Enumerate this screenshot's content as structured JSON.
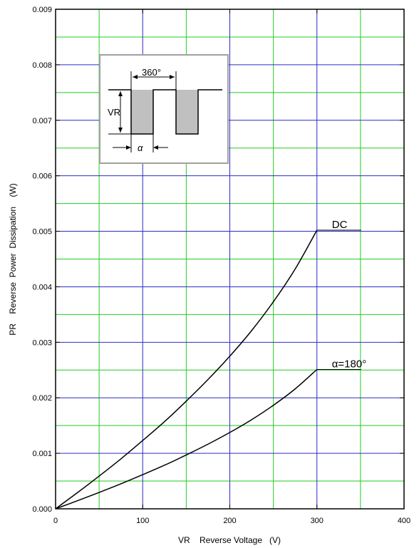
{
  "chart_data": {
    "type": "line",
    "xlabel": "VR    Reverse Voltage   (V)",
    "ylabel": "PR    Reverse  Power  Dissipation    (W)",
    "xlim": [
      0,
      400
    ],
    "ylim": [
      0,
      0.009
    ],
    "x_major_ticks": [
      0,
      100,
      200,
      300,
      400
    ],
    "x_tick_labels": [
      "0",
      "100",
      "200",
      "300",
      "400"
    ],
    "y_major_ticks": [
      0,
      0.001,
      0.002,
      0.003,
      0.004,
      0.005,
      0.006,
      0.007,
      0.008,
      0.009
    ],
    "y_tick_labels": [
      "0.000",
      "0.001",
      "0.002",
      "0.003",
      "0.004",
      "0.005",
      "0.006",
      "0.007",
      "0.008",
      "0.009"
    ],
    "grid": true,
    "grid_major_color": "#2c2cc8",
    "grid_minor_color": "#22cc22",
    "series": [
      {
        "name": "DC",
        "x": [
          0,
          25,
          50,
          75,
          100,
          125,
          150,
          175,
          200,
          225,
          250,
          275,
          300
        ],
        "y": [
          0,
          0.00029,
          0.00059,
          0.0009,
          0.00123,
          0.00157,
          0.00194,
          0.00233,
          0.00275,
          0.00321,
          0.00373,
          0.00432,
          0.00502
        ],
        "color": "#000000"
      },
      {
        "name": "α=180°",
        "x": [
          0,
          25,
          50,
          75,
          100,
          125,
          150,
          175,
          200,
          225,
          250,
          275,
          300
        ],
        "y": [
          0,
          0.000145,
          0.000295,
          0.00045,
          0.000615,
          0.000785,
          0.00097,
          0.001165,
          0.001375,
          0.001605,
          0.001865,
          0.00216,
          0.00251
        ],
        "color": "#000000"
      }
    ],
    "annotations": [
      {
        "text": "DC",
        "series": 0
      },
      {
        "text": "α=180°",
        "series": 1
      }
    ],
    "inset": {
      "period_label": "360°",
      "voltage_label": "VR",
      "alpha_label": "α"
    }
  }
}
